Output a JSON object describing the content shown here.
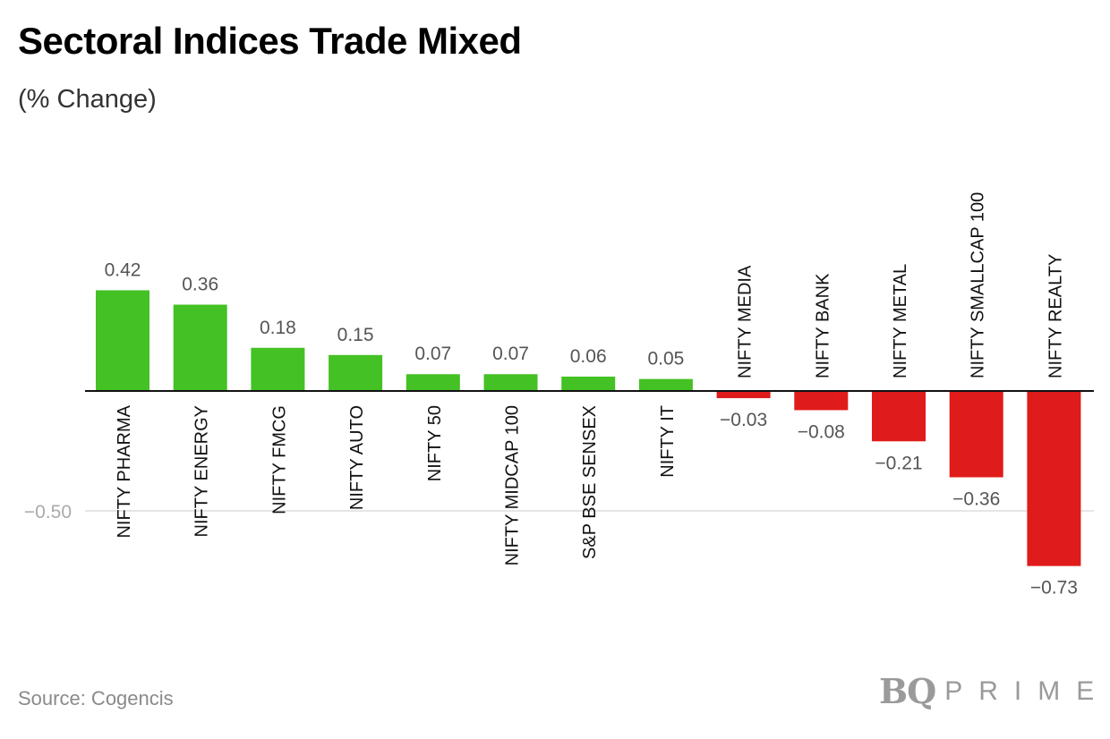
{
  "title": "Sectoral Indices Trade Mixed",
  "subtitle": "(% Change)",
  "source": "Source: Cogencis",
  "brand": {
    "mark": "BQ",
    "word": "PRIME"
  },
  "colors": {
    "positive": "#44c124",
    "negative": "#e01b1b",
    "label": "#555555",
    "axis": "#111111",
    "grid": "#dddddd",
    "tick": "#aaaaaa"
  },
  "chart_data": {
    "type": "bar",
    "title": "Sectoral Indices Trade Mixed",
    "subtitle": "(% Change)",
    "categories": [
      "NIFTY PHARMA",
      "NIFTY ENERGY",
      "NIFTY FMCG",
      "NIFTY AUTO",
      "NIFTY 50",
      "NIFTY MIDCAP 100",
      "S&P BSE SENSEX",
      "NIFTY IT",
      "NIFTY MEDIA",
      "NIFTY BANK",
      "NIFTY METAL",
      "NIFTY SMALLCAP 100",
      "NIFTY REALTY"
    ],
    "values": [
      0.42,
      0.36,
      0.18,
      0.15,
      0.07,
      0.07,
      0.06,
      0.05,
      -0.03,
      -0.08,
      -0.21,
      -0.36,
      -0.73
    ],
    "value_labels": [
      "0.42",
      "0.36",
      "0.18",
      "0.15",
      "0.07",
      "0.07",
      "0.06",
      "0.05",
      "−0.03",
      "−0.08",
      "−0.21",
      "−0.36",
      "−0.73"
    ],
    "yticks": [
      -0.5
    ],
    "ytick_labels": [
      "−0.50"
    ],
    "grid": true,
    "legend": false
  }
}
